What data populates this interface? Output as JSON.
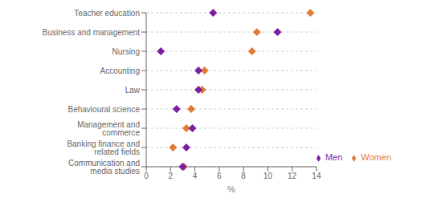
{
  "chart_data": {
    "type": "dot",
    "orientation": "horizontal",
    "categories": [
      "Teacher education",
      "Business and management",
      "Nursing",
      "Accounting",
      "Law",
      "Behavioural science",
      "Management and commerce",
      "Banking finance and related fields",
      "Communication and media studies"
    ],
    "series": [
      {
        "name": "Men",
        "color": "#7B1FA2",
        "marker": "diamond",
        "values": [
          5.5,
          10.8,
          1.2,
          4.3,
          4.3,
          2.5,
          3.8,
          3.3,
          3.0
        ]
      },
      {
        "name": "Women",
        "color": "#E07B39",
        "marker": "diamond",
        "values": [
          13.5,
          9.1,
          8.7,
          4.8,
          4.6,
          3.7,
          3.3,
          2.2,
          3.1
        ]
      }
    ],
    "xlabel": "%",
    "xlim": [
      0,
      14
    ],
    "xticks": [
      0,
      2,
      4,
      6,
      8,
      10,
      12,
      14
    ],
    "grid": true,
    "legend": "lower right"
  }
}
